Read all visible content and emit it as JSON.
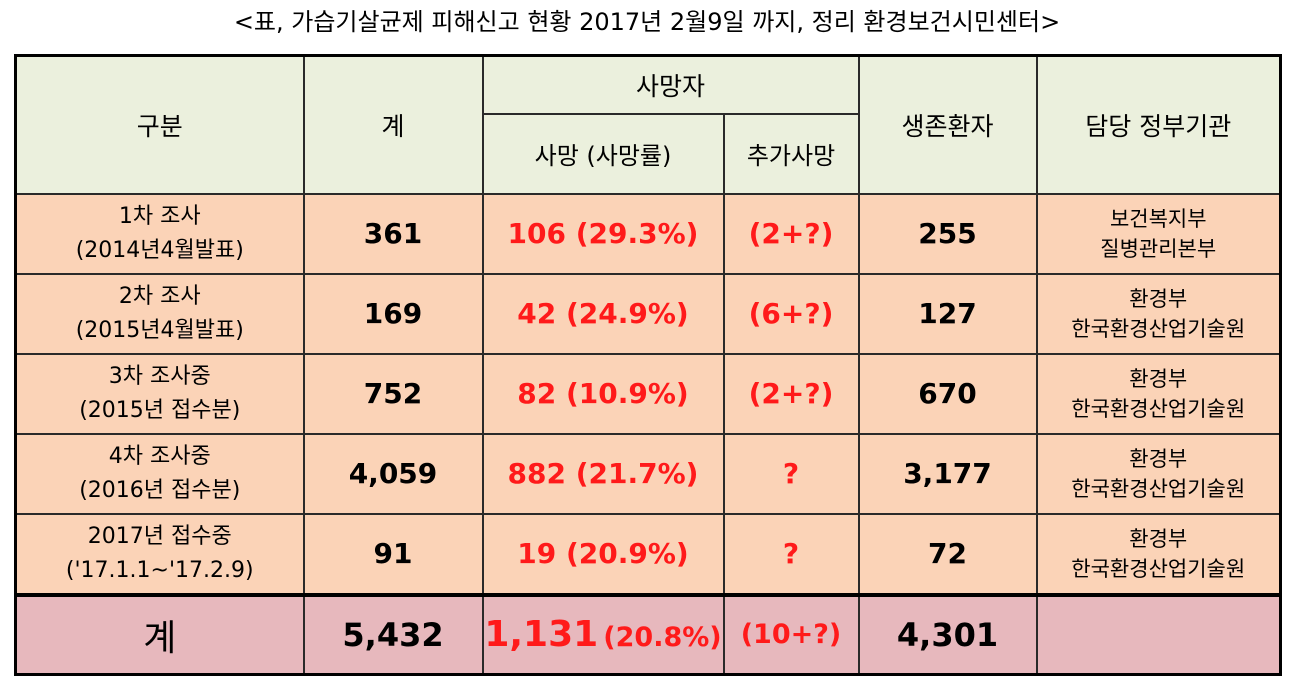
{
  "title": "<표, 가습기살균제 피해신고 현황 2017년 2월9일 까지, 정리 환경보건시민센터>",
  "headers": {
    "category": "구분",
    "total": "계",
    "deaths_group": "사망자",
    "deaths": "사망 (사망률)",
    "additional_deaths": "추가사망",
    "survivors": "생존환자",
    "agency": "담당 정부기관"
  },
  "rows": [
    {
      "label_line1": "1차 조사",
      "label_line2": "(2014년4월발표)",
      "total": "361",
      "deaths": "106 (29.3%)",
      "additional": "(2+?)",
      "survivors": "255",
      "agency_line1": "보건복지부",
      "agency_line2": "질병관리본부"
    },
    {
      "label_line1": "2차 조사",
      "label_line2": "(2015년4월발표)",
      "total": "169",
      "deaths": "42 (24.9%)",
      "additional": "(6+?)",
      "survivors": "127",
      "agency_line1": "환경부",
      "agency_line2": "한국환경산업기술원"
    },
    {
      "label_line1": "3차 조사중",
      "label_line2": "(2015년 접수분)",
      "total": "752",
      "deaths": "82 (10.9%)",
      "additional": "(2+?)",
      "survivors": "670",
      "agency_line1": "환경부",
      "agency_line2": "한국환경산업기술원"
    },
    {
      "label_line1": "4차 조사중",
      "label_line2": "(2016년 접수분)",
      "total": "4,059",
      "deaths": "882 (21.7%)",
      "additional": "?",
      "survivors": "3,177",
      "agency_line1": "환경부",
      "agency_line2": "한국환경산업기술원"
    },
    {
      "label_line1": "2017년 접수중",
      "label_line2": "('17.1.1~'17.2.9)",
      "total": "91",
      "deaths": "19 (20.9%)",
      "additional": "?",
      "survivors": "72",
      "agency_line1": "환경부",
      "agency_line2": "한국환경산업기술원"
    }
  ],
  "totals": {
    "label": "계",
    "total": "5,432",
    "deaths_count": "1,131",
    "deaths_rate": "(20.8%)",
    "additional": "(10+?)",
    "survivors": "4,301",
    "agency": ""
  },
  "colors": {
    "header_bg": "#ebf0dd",
    "row_bg": "#fbd3b7",
    "total_bg": "#e7b8bd",
    "highlight_red": "#ff1a1a"
  }
}
